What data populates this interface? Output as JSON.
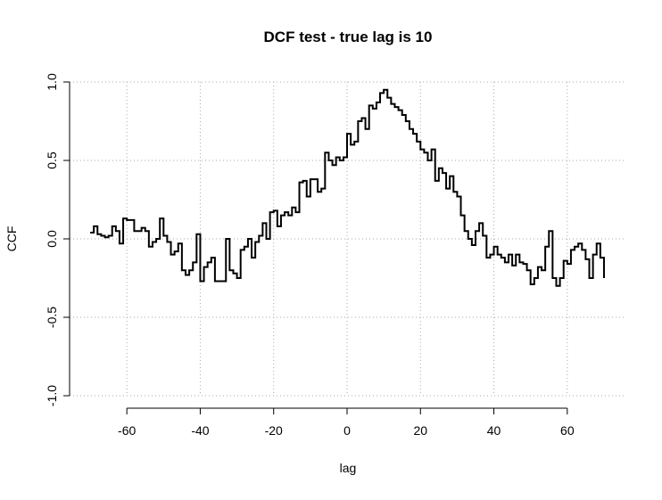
{
  "chart_data": {
    "type": "step",
    "title": "DCF test - true lag is 10",
    "xlabel": "lag",
    "ylabel": "CCF",
    "x": [
      -70,
      -69,
      -68,
      -67,
      -66,
      -65,
      -64,
      -63,
      -62,
      -61,
      -60,
      -59,
      -58,
      -57,
      -56,
      -55,
      -54,
      -53,
      -52,
      -51,
      -50,
      -49,
      -48,
      -47,
      -46,
      -45,
      -44,
      -43,
      -42,
      -41,
      -40,
      -39,
      -38,
      -37,
      -36,
      -35,
      -34,
      -33,
      -32,
      -31,
      -30,
      -29,
      -28,
      -27,
      -26,
      -25,
      -24,
      -23,
      -22,
      -21,
      -20,
      -19,
      -18,
      -17,
      -16,
      -15,
      -14,
      -13,
      -12,
      -11,
      -10,
      -9,
      -8,
      -7,
      -6,
      -5,
      -4,
      -3,
      -2,
      -1,
      0,
      1,
      2,
      3,
      4,
      5,
      6,
      7,
      8,
      9,
      10,
      11,
      12,
      13,
      14,
      15,
      16,
      17,
      18,
      19,
      20,
      21,
      22,
      23,
      24,
      25,
      26,
      27,
      28,
      29,
      30,
      31,
      32,
      33,
      34,
      35,
      36,
      37,
      38,
      39,
      40,
      41,
      42,
      43,
      44,
      45,
      46,
      47,
      48,
      49,
      50,
      51,
      52,
      53,
      54,
      55,
      56,
      57,
      58,
      59,
      60,
      61,
      62,
      63,
      64,
      65,
      66,
      67,
      68,
      69,
      70
    ],
    "series": [
      {
        "color": "#000000",
        "values": [
          0.04,
          0.08,
          0.03,
          0.02,
          0.01,
          0.02,
          0.08,
          0.05,
          -0.03,
          0.13,
          0.12,
          0.12,
          0.05,
          0.05,
          0.07,
          0.05,
          -0.05,
          -0.02,
          0.0,
          0.13,
          0.02,
          -0.02,
          -0.1,
          -0.08,
          -0.03,
          -0.2,
          -0.23,
          -0.2,
          -0.15,
          0.03,
          -0.27,
          -0.18,
          -0.15,
          -0.12,
          -0.27,
          -0.27,
          -0.27,
          0.0,
          -0.2,
          -0.22,
          -0.25,
          -0.07,
          -0.05,
          0.0,
          -0.12,
          -0.02,
          0.02,
          0.1,
          0.0,
          0.17,
          0.18,
          0.08,
          0.15,
          0.17,
          0.15,
          0.2,
          0.17,
          0.36,
          0.37,
          0.27,
          0.38,
          0.38,
          0.3,
          0.32,
          0.55,
          0.5,
          0.47,
          0.52,
          0.5,
          0.52,
          0.67,
          0.6,
          0.62,
          0.75,
          0.77,
          0.7,
          0.85,
          0.83,
          0.87,
          0.93,
          0.95,
          0.9,
          0.86,
          0.84,
          0.82,
          0.79,
          0.75,
          0.7,
          0.67,
          0.62,
          0.57,
          0.55,
          0.5,
          0.57,
          0.37,
          0.45,
          0.42,
          0.32,
          0.4,
          0.3,
          0.27,
          0.15,
          0.05,
          0.0,
          -0.04,
          0.05,
          0.1,
          0.02,
          -0.12,
          -0.1,
          -0.05,
          -0.1,
          -0.12,
          -0.15,
          -0.1,
          -0.17,
          -0.1,
          -0.15,
          -0.16,
          -0.2,
          -0.29,
          -0.25,
          -0.18,
          -0.2,
          -0.05,
          0.05,
          -0.25,
          -0.3,
          -0.25,
          -0.14,
          -0.16,
          -0.07,
          -0.05,
          -0.03,
          -0.07,
          -0.13,
          -0.25,
          -0.1,
          -0.03,
          -0.12,
          -0.25
        ]
      }
    ],
    "xlim": [
      -75.6,
      75.6
    ],
    "ylim": [
      -1,
      1
    ],
    "xticks": [
      -60,
      -40,
      -20,
      0,
      20,
      40,
      60
    ],
    "yticks": [
      {
        "value": -1,
        "label": "-1.0"
      },
      -0.5,
      {
        "value": 0,
        "label": "0.0"
      },
      0.5,
      {
        "value": 1,
        "label": "1.0"
      }
    ],
    "grid": true
  }
}
